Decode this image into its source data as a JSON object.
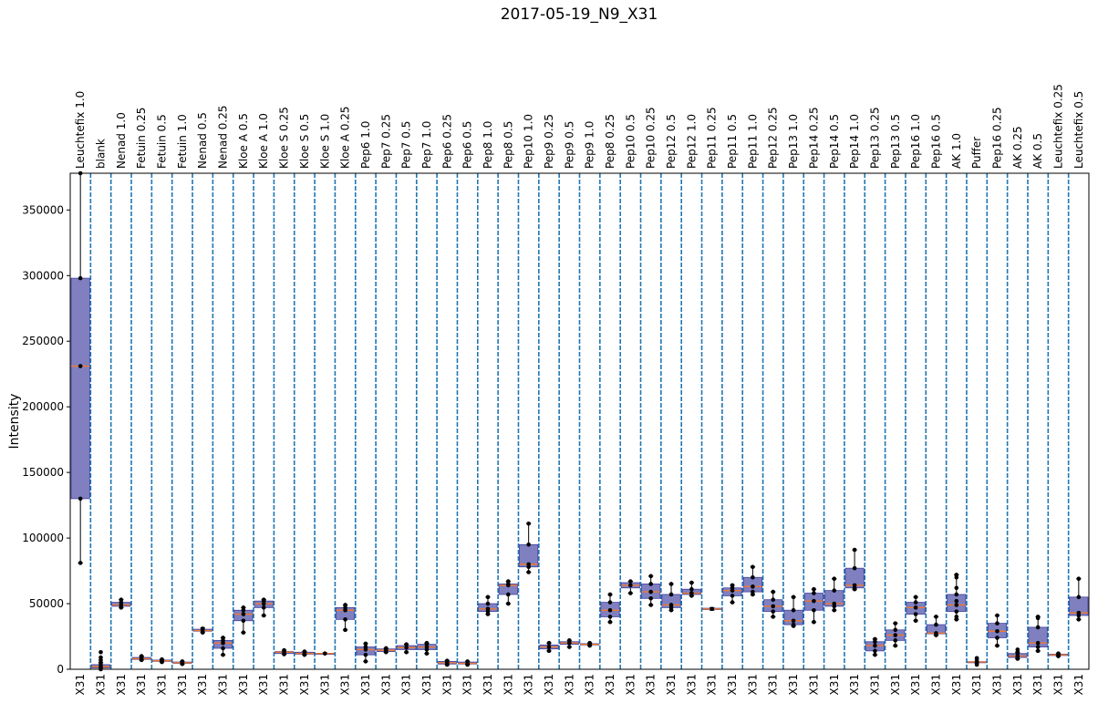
{
  "chart_data": {
    "type": "boxplot",
    "title": "2017-05-19_N9_X31",
    "ylabel": "Intensity",
    "ylim": [
      0,
      378000
    ],
    "yticks": [
      0,
      50000,
      100000,
      150000,
      200000,
      250000,
      300000,
      350000
    ],
    "ytick_labels": [
      "0",
      "50000",
      "100000",
      "150000",
      "200000",
      "250000",
      "300000",
      "350000"
    ],
    "grid": "vertical dashed separators between groups",
    "colors": {
      "box_fill": "#8080c0",
      "box_edge": "#4040a0",
      "median": "#f07830",
      "separator": "#1f77b4",
      "point": "#000000"
    },
    "categories": [
      "Leuchtefix 1.0",
      "blank",
      "Nenad 1.0",
      "Fetuin 0.25",
      "Fetuin 0.5",
      "Fetuin 1.0",
      "Nenad 0.5",
      "Nenad 0.25",
      "Kloe A 0.5",
      "Kloe A 1.0",
      "Kloe S 0.25",
      "Kloe S 0.5",
      "Kloe S 1.0",
      "Kloe A 0.25",
      "Pep6 1.0",
      "Pep7 0.25",
      "Pep7 0.5",
      "Pep7 1.0",
      "Pep6 0.25",
      "Pep6 0.5",
      "Pep8 1.0",
      "Pep8 0.5",
      "Pep10 1.0",
      "Pep9 0.25",
      "Pep9 0.5",
      "Pep9 1.0",
      "Pep8 0.25",
      "Pep10 0.5",
      "Pep10 0.25",
      "Pep12 0.5",
      "Pep12 1.0",
      "Pep11 0.25",
      "Pep11 0.5",
      "Pep11 1.0",
      "Pep12 0.25",
      "Pep13 1.0",
      "Pep14 0.25",
      "Pep14 0.5",
      "Pep14 1.0",
      "Pep13 0.25",
      "Pep13 0.5",
      "Pep16 1.0",
      "Pep16 0.5",
      "AK 1.0",
      "Puffer",
      "Pep16 0.25",
      "AK 0.25",
      "AK 0.5",
      "Leuchtefix 0.25",
      "Leuchtefix 0.5"
    ],
    "bottom_labels": [
      "X31",
      "X31",
      "X31",
      "X31",
      "X31",
      "X31",
      "X31",
      "X31",
      "X31",
      "X31",
      "X31",
      "X31",
      "X31",
      "X31",
      "X31",
      "X31",
      "X31",
      "X31",
      "X31",
      "X31",
      "X31",
      "X31",
      "X31",
      "X31",
      "X31",
      "X31",
      "X31",
      "X31",
      "X31",
      "X31",
      "X31",
      "X31",
      "X31",
      "X31",
      "X31",
      "X31",
      "X31",
      "X31",
      "X31",
      "X31",
      "X31",
      "X31",
      "X31",
      "X31",
      "X31",
      "X31",
      "X31",
      "X31",
      "X31",
      "X31"
    ],
    "series": [
      {
        "lo": 81000,
        "q1": 130000,
        "med": 231000,
        "q3": 298000,
        "hi": 378000,
        "points": [
          81000,
          130000,
          231000,
          298000,
          378000
        ]
      },
      {
        "lo": 0,
        "q1": 1000,
        "med": 2000,
        "q3": 3500,
        "hi": 5000,
        "points": [
          0,
          1000,
          2000,
          3500,
          5000,
          7000,
          9000,
          13000
        ]
      },
      {
        "lo": 47000,
        "q1": 48000,
        "med": 49000,
        "q3": 51000,
        "hi": 53000,
        "points": [
          47000,
          49000,
          51000,
          53000
        ]
      },
      {
        "lo": 7000,
        "q1": 7500,
        "med": 8000,
        "q3": 9000,
        "hi": 10000,
        "points": [
          7000,
          8000,
          9000,
          10000
        ]
      },
      {
        "lo": 5500,
        "q1": 6000,
        "med": 6500,
        "q3": 7000,
        "hi": 7500,
        "points": [
          5500,
          6500,
          7000,
          7500
        ]
      },
      {
        "lo": 4000,
        "q1": 4500,
        "med": 5000,
        "q3": 5500,
        "hi": 6000,
        "points": [
          4000,
          5000,
          6000
        ]
      },
      {
        "lo": 28000,
        "q1": 29000,
        "med": 29500,
        "q3": 30500,
        "hi": 31500,
        "points": [
          28000,
          29500,
          31000
        ]
      },
      {
        "lo": 11000,
        "q1": 16000,
        "med": 20000,
        "q3": 22000,
        "hi": 24000,
        "points": [
          11000,
          16000,
          20000,
          22000,
          24000
        ]
      },
      {
        "lo": 28000,
        "q1": 37000,
        "med": 42000,
        "q3": 45000,
        "hi": 47000,
        "points": [
          28000,
          37000,
          42000,
          45000,
          47000
        ]
      },
      {
        "lo": 41000,
        "q1": 47000,
        "med": 50000,
        "q3": 52000,
        "hi": 53000,
        "points": [
          41000,
          47000,
          50000,
          52000,
          53000
        ]
      },
      {
        "lo": 11500,
        "q1": 12000,
        "med": 13000,
        "q3": 13500,
        "hi": 14500,
        "points": [
          11500,
          13000,
          14500
        ]
      },
      {
        "lo": 11000,
        "q1": 11500,
        "med": 12000,
        "q3": 13000,
        "hi": 13500,
        "points": [
          11000,
          12000,
          13500
        ]
      },
      {
        "lo": 11500,
        "q1": 11800,
        "med": 12000,
        "q3": 12200,
        "hi": 12500,
        "points": [
          12000
        ]
      },
      {
        "lo": 30000,
        "q1": 38000,
        "med": 45000,
        "q3": 47000,
        "hi": 49000,
        "points": [
          30000,
          38000,
          45000,
          47000,
          49000
        ]
      },
      {
        "lo": 6000,
        "q1": 11000,
        "med": 15000,
        "q3": 17000,
        "hi": 19500,
        "points": [
          6000,
          11000,
          15000,
          17000,
          19500
        ]
      },
      {
        "lo": 13000,
        "q1": 13500,
        "med": 14500,
        "q3": 15500,
        "hi": 16000,
        "points": [
          13000,
          14500,
          16000
        ]
      },
      {
        "lo": 13000,
        "q1": 15000,
        "med": 16500,
        "q3": 18000,
        "hi": 19000,
        "points": [
          13000,
          16500,
          19000
        ]
      },
      {
        "lo": 12000,
        "q1": 15000,
        "med": 17000,
        "q3": 19000,
        "hi": 20000,
        "points": [
          12000,
          15000,
          17000,
          19000,
          20000
        ]
      },
      {
        "lo": 3500,
        "q1": 4000,
        "med": 5000,
        "q3": 6000,
        "hi": 6500,
        "points": [
          3500,
          5000,
          6500
        ]
      },
      {
        "lo": 3500,
        "q1": 4000,
        "med": 4500,
        "q3": 5500,
        "hi": 6000,
        "points": [
          3500,
          4500,
          6000
        ]
      },
      {
        "lo": 42000,
        "q1": 44000,
        "med": 46000,
        "q3": 50000,
        "hi": 55000,
        "points": [
          42000,
          44000,
          46000,
          50000,
          55000
        ]
      },
      {
        "lo": 50000,
        "q1": 57000,
        "med": 64000,
        "q3": 65000,
        "hi": 67000,
        "points": [
          50000,
          57000,
          64000,
          65000,
          67000
        ]
      },
      {
        "lo": 74000,
        "q1": 78000,
        "med": 80000,
        "q3": 95000,
        "hi": 111000,
        "points": [
          74000,
          78000,
          80000,
          95000,
          111000
        ]
      },
      {
        "lo": 14000,
        "q1": 15500,
        "med": 17000,
        "q3": 18500,
        "hi": 20000,
        "points": [
          14000,
          17000,
          20000
        ]
      },
      {
        "lo": 17000,
        "q1": 19000,
        "med": 20000,
        "q3": 21000,
        "hi": 22000,
        "points": [
          17000,
          20000,
          22000
        ]
      },
      {
        "lo": 18000,
        "q1": 18500,
        "med": 19000,
        "q3": 19500,
        "hi": 20000,
        "points": [
          18000,
          19000,
          20000
        ]
      },
      {
        "lo": 36000,
        "q1": 40000,
        "med": 45000,
        "q3": 51000,
        "hi": 57000,
        "points": [
          36000,
          40000,
          45000,
          51000,
          57000
        ]
      },
      {
        "lo": 58000,
        "q1": 62000,
        "med": 64000,
        "q3": 66000,
        "hi": 67000,
        "points": [
          58000,
          64000,
          67000
        ]
      },
      {
        "lo": 49000,
        "q1": 54000,
        "med": 59000,
        "q3": 65000,
        "hi": 71000,
        "points": [
          49000,
          54000,
          59000,
          65000,
          71000
        ]
      },
      {
        "lo": 45000,
        "q1": 47000,
        "med": 49000,
        "q3": 57000,
        "hi": 65000,
        "points": [
          45000,
          47000,
          49000,
          57000,
          65000
        ]
      },
      {
        "lo": 56000,
        "q1": 57000,
        "med": 58000,
        "q3": 61000,
        "hi": 66000,
        "points": [
          56000,
          58000,
          61000,
          66000
        ]
      },
      {
        "lo": 45000,
        "q1": 45500,
        "med": 46000,
        "q3": 46500,
        "hi": 47000,
        "points": [
          46000
        ]
      },
      {
        "lo": 51000,
        "q1": 56000,
        "med": 60000,
        "q3": 62000,
        "hi": 64000,
        "points": [
          51000,
          56000,
          60000,
          62000,
          64000
        ]
      },
      {
        "lo": 57000,
        "q1": 59000,
        "med": 63000,
        "q3": 70000,
        "hi": 78000,
        "points": [
          57000,
          59000,
          63000,
          70000,
          78000
        ]
      },
      {
        "lo": 40000,
        "q1": 44000,
        "med": 48000,
        "q3": 53000,
        "hi": 59000,
        "points": [
          40000,
          44000,
          48000,
          53000,
          59000
        ]
      },
      {
        "lo": 33000,
        "q1": 34000,
        "med": 37000,
        "q3": 45000,
        "hi": 55000,
        "points": [
          33000,
          34000,
          37000,
          45000,
          55000
        ]
      },
      {
        "lo": 36000,
        "q1": 45000,
        "med": 52000,
        "q3": 58000,
        "hi": 61000,
        "points": [
          36000,
          45000,
          52000,
          58000,
          61000
        ]
      },
      {
        "lo": 45000,
        "q1": 48000,
        "med": 50000,
        "q3": 60000,
        "hi": 69000,
        "points": [
          45000,
          48000,
          50000,
          60000,
          69000
        ]
      },
      {
        "lo": 61000,
        "q1": 62000,
        "med": 64000,
        "q3": 77000,
        "hi": 91000,
        "points": [
          61000,
          62000,
          64000,
          77000,
          91000
        ]
      },
      {
        "lo": 11000,
        "q1": 14000,
        "med": 18000,
        "q3": 21000,
        "hi": 23000,
        "points": [
          11000,
          14000,
          18000,
          21000,
          23000
        ]
      },
      {
        "lo": 18000,
        "q1": 22000,
        "med": 26000,
        "q3": 30000,
        "hi": 35000,
        "points": [
          18000,
          22000,
          26000,
          30000,
          35000
        ]
      },
      {
        "lo": 37000,
        "q1": 42000,
        "med": 47000,
        "q3": 51000,
        "hi": 55000,
        "points": [
          37000,
          42000,
          47000,
          51000,
          55000
        ]
      },
      {
        "lo": 26000,
        "q1": 27000,
        "med": 27500,
        "q3": 34000,
        "hi": 40000,
        "points": [
          26000,
          27500,
          34000,
          40000
        ]
      },
      {
        "lo": 38000,
        "q1": 44000,
        "med": 49000,
        "q3": 57000,
        "hi": 72000,
        "points": [
          38000,
          40000,
          44000,
          49000,
          52000,
          57000,
          62000,
          70000,
          72000
        ]
      },
      {
        "lo": 5000,
        "q1": 5200,
        "med": 5500,
        "q3": 5800,
        "hi": 6000,
        "points": [
          3500,
          4500,
          5500,
          7500,
          8500
        ]
      },
      {
        "lo": 18000,
        "q1": 24000,
        "med": 29000,
        "q3": 35000,
        "hi": 41000,
        "points": [
          18000,
          24000,
          29000,
          35000,
          41000
        ]
      },
      {
        "lo": 8000,
        "q1": 9000,
        "med": 10000,
        "q3": 12000,
        "hi": 13000,
        "points": [
          8000,
          9000,
          10000,
          12000,
          13000,
          15000
        ]
      },
      {
        "lo": 14000,
        "q1": 17000,
        "med": 20000,
        "q3": 32000,
        "hi": 40000,
        "points": [
          14000,
          17000,
          20000,
          32000,
          39000,
          40000
        ]
      },
      {
        "lo": 10000,
        "q1": 10500,
        "med": 11000,
        "q3": 11500,
        "hi": 12000,
        "points": [
          10000,
          11000,
          12000
        ]
      },
      {
        "lo": 38000,
        "q1": 41000,
        "med": 43000,
        "q3": 55000,
        "hi": 69000,
        "points": [
          38000,
          41000,
          43000,
          55000,
          69000
        ]
      }
    ]
  }
}
